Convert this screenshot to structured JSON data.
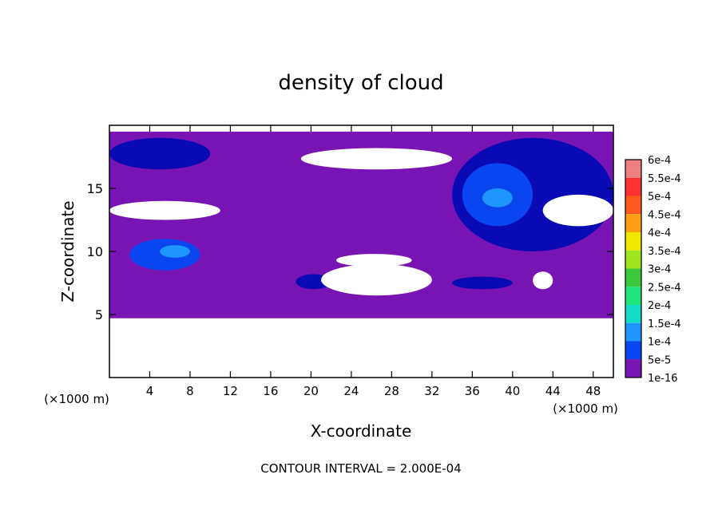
{
  "chart_data": {
    "type": "heatmap",
    "title": "density of cloud",
    "xlabel": "X-coordinate",
    "ylabel": "Z-coordinate",
    "x_unit_left": "(×1000 m)",
    "x_unit_right": "(×1000 m)",
    "footer": "CONTOUR INTERVAL = 2.000E-04",
    "xlim": [
      0,
      50
    ],
    "ylim": [
      0,
      20
    ],
    "x_ticks": [
      4,
      8,
      12,
      16,
      20,
      24,
      28,
      32,
      36,
      40,
      44,
      48
    ],
    "y_ticks": [
      5,
      10,
      15
    ],
    "colorbar": {
      "labels": [
        "6e-4",
        "5.5e-4",
        "5e-4",
        "4.5e-4",
        "4e-4",
        "3.5e-4",
        "3e-4",
        "2.5e-4",
        "2e-4",
        "1.5e-4",
        "1e-4",
        "5e-5",
        "1e-16"
      ],
      "colors": [
        "#f08080",
        "#ff3030",
        "#ff5a1e",
        "#ffa014",
        "#f0e600",
        "#9ee61e",
        "#3cc83c",
        "#1ee67a",
        "#14dcc8",
        "#1e96ff",
        "#0a46f0",
        "#0a0ab4",
        "#7814b4"
      ]
    },
    "regions": [
      {
        "level": "1e-16",
        "x": [
          0,
          50
        ],
        "z": [
          4.7,
          19.5
        ],
        "description": "cloud base layer"
      },
      {
        "level": "5e-5",
        "x": [
          0,
          10
        ],
        "z": [
          16.5,
          19
        ],
        "description": "upper-left band"
      },
      {
        "level": "1e-4",
        "x": [
          2,
          9
        ],
        "z": [
          8.5,
          11
        ]
      },
      {
        "level": "1.5e-4",
        "x": [
          5,
          8
        ],
        "z": [
          9.5,
          10.5
        ]
      },
      {
        "level": "5e-5",
        "x": [
          34,
          50
        ],
        "z": [
          10,
          19
        ]
      },
      {
        "level": "1e-4",
        "x": [
          35,
          42
        ],
        "z": [
          12,
          17
        ]
      },
      {
        "level": "1.5e-4",
        "x": [
          37,
          40
        ],
        "z": [
          13.5,
          15
        ]
      },
      {
        "level": "5e-5",
        "x": [
          18.5,
          22
        ],
        "z": [
          7,
          8.2
        ]
      },
      {
        "level": "5e-5",
        "x": [
          34,
          40
        ],
        "z": [
          7,
          8
        ]
      }
    ]
  }
}
